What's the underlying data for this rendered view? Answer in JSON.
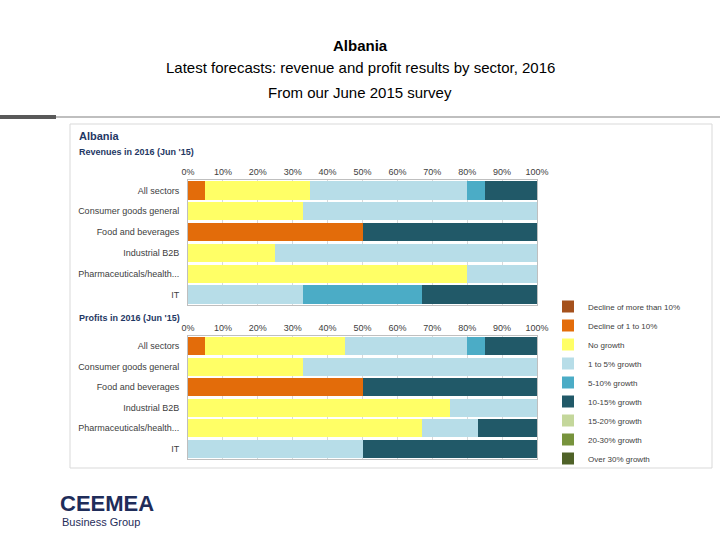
{
  "header": {
    "lines": [
      "Albania",
      "Latest forecasts: revenue and profit results by sector, 2016",
      "From our June 2015 survey"
    ]
  },
  "panel_title": "Albania",
  "footer": {
    "logo": "CEEMEA",
    "tagline": "Business Group"
  },
  "chart_data": [
    {
      "type": "bar",
      "title": "Revenues in 2016 (Jun '15)",
      "orientation": "horizontal",
      "stacked": true,
      "grid": true,
      "categories": [
        "All sectors",
        "Consumer goods general",
        "Food and beverages",
        "Industrial B2B",
        "Pharmaceuticals/health...",
        "IT"
      ],
      "xlim": [
        0,
        100
      ],
      "xticks": [
        {
          "value": 0,
          "label": "0%"
        },
        {
          "value": 10,
          "label": "10%"
        },
        {
          "value": 20,
          "label": "20%"
        },
        {
          "value": 30,
          "label": "30%"
        },
        {
          "value": 40,
          "label": "40%"
        },
        {
          "value": 50,
          "label": "50%"
        },
        {
          "value": 60,
          "label": "60%"
        },
        {
          "value": 70,
          "label": "70%"
        },
        {
          "value": 80,
          "label": "80%"
        },
        {
          "value": 90,
          "label": "90%"
        },
        {
          "value": 100,
          "label": "100%"
        }
      ],
      "series": [
        {
          "name": "Decline of more than 10%",
          "color": "#a5511c",
          "values": [
            0,
            0,
            0,
            0,
            0,
            0
          ]
        },
        {
          "name": "Decline of 1 to 10%",
          "color": "#e36c0a",
          "values": [
            5,
            0,
            50,
            0,
            0,
            0
          ]
        },
        {
          "name": "No growth",
          "color": "#ffff66",
          "values": [
            30,
            33,
            0,
            25,
            80,
            0
          ]
        },
        {
          "name": "1 to 5% growth",
          "color": "#b7dde8",
          "values": [
            45,
            67,
            0,
            75,
            20,
            33
          ]
        },
        {
          "name": "5-10% growth",
          "color": "#4bacc6",
          "values": [
            5,
            0,
            0,
            0,
            0,
            34
          ]
        },
        {
          "name": "10-15% growth",
          "color": "#215968",
          "values": [
            15,
            0,
            50,
            0,
            0,
            33
          ]
        },
        {
          "name": "15-20% growth",
          "color": "#c4d79b",
          "values": [
            0,
            0,
            0,
            0,
            0,
            0
          ]
        },
        {
          "name": "20-30% growth",
          "color": "#77933c",
          "values": [
            0,
            0,
            0,
            0,
            0,
            0
          ]
        },
        {
          "name": "Over 30% growth",
          "color": "#4f6228",
          "values": [
            0,
            0,
            0,
            0,
            0,
            0
          ]
        }
      ]
    },
    {
      "type": "bar",
      "title": "Profits in 2016 (Jun '15)",
      "orientation": "horizontal",
      "stacked": true,
      "grid": true,
      "legend": "right",
      "categories": [
        "All sectors",
        "Consumer goods general",
        "Food and beverages",
        "Industrial B2B",
        "Pharmaceuticals/health...",
        "IT"
      ],
      "xlim": [
        0,
        100
      ],
      "xticks": [
        {
          "value": 0,
          "label": "0%"
        },
        {
          "value": 10,
          "label": "10%"
        },
        {
          "value": 20,
          "label": "20%"
        },
        {
          "value": 30,
          "label": "30%"
        },
        {
          "value": 40,
          "label": "40%"
        },
        {
          "value": 50,
          "label": "50%"
        },
        {
          "value": 60,
          "label": "60%"
        },
        {
          "value": 70,
          "label": "70%"
        },
        {
          "value": 80,
          "label": "80%"
        },
        {
          "value": 90,
          "label": "90%"
        },
        {
          "value": 100,
          "label": "100%"
        }
      ],
      "series": [
        {
          "name": "Decline of more than 10%",
          "color": "#a5511c",
          "values": [
            0,
            0,
            0,
            0,
            0,
            0
          ]
        },
        {
          "name": "Decline of 1 to 10%",
          "color": "#e36c0a",
          "values": [
            5,
            0,
            50,
            0,
            0,
            0
          ]
        },
        {
          "name": "No growth",
          "color": "#ffff66",
          "values": [
            40,
            33,
            0,
            75,
            67,
            0
          ]
        },
        {
          "name": "1 to 5% growth",
          "color": "#b7dde8",
          "values": [
            35,
            67,
            0,
            25,
            16,
            50
          ]
        },
        {
          "name": "5-10% growth",
          "color": "#4bacc6",
          "values": [
            5,
            0,
            0,
            0,
            0,
            0
          ]
        },
        {
          "name": "10-15% growth",
          "color": "#215968",
          "values": [
            15,
            0,
            50,
            0,
            17,
            50
          ]
        },
        {
          "name": "15-20% growth",
          "color": "#c4d79b",
          "values": [
            0,
            0,
            0,
            0,
            0,
            0
          ]
        },
        {
          "name": "20-30% growth",
          "color": "#77933c",
          "values": [
            0,
            0,
            0,
            0,
            0,
            0
          ]
        },
        {
          "name": "Over 30% growth",
          "color": "#4f6228",
          "values": [
            0,
            0,
            0,
            0,
            0,
            0
          ]
        }
      ]
    }
  ]
}
